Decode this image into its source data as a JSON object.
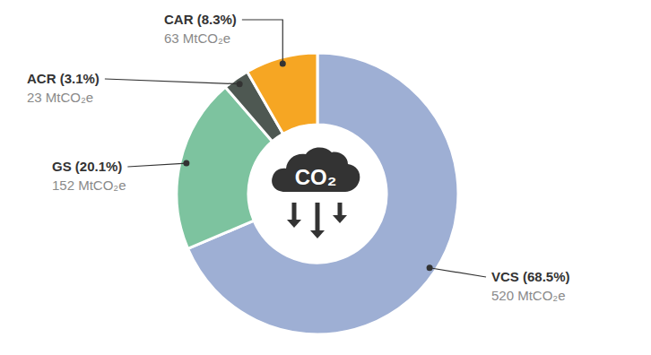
{
  "chart_data": {
    "type": "donut",
    "categories": [
      "VCS (68.5%)",
      "GS (20.1%)",
      "ACR (3.1%)",
      "CAR (8.3%)"
    ],
    "values": [
      520,
      152,
      23,
      63
    ],
    "value_labels": [
      "520 MtCO₂e",
      "152 MtCO₂e",
      "23 MtCO₂e",
      "63 MtCO₂e"
    ],
    "percentages": [
      68.5,
      20.1,
      3.1,
      8.3
    ],
    "colors": [
      "#9eafd4",
      "#7dc39f",
      "#4e5852",
      "#f6a623"
    ],
    "data_labels": true,
    "center_label": "CO₂"
  }
}
